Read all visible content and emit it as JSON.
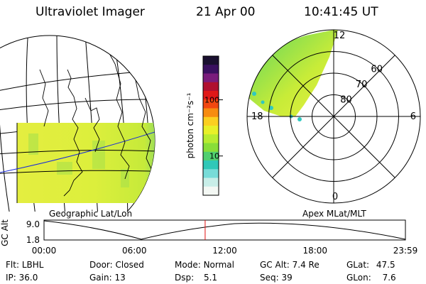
{
  "header": {
    "title": "Ultraviolet Imager",
    "date": "21 Apr 00",
    "time": "10:41:45 UT"
  },
  "colorbar": {
    "unit_label": "photon cm⁻²s⁻¹",
    "ticks": [
      {
        "value": 100,
        "label": "100"
      },
      {
        "value": 10,
        "label": "10"
      }
    ],
    "colors": [
      "#1a1030",
      "#3a1060",
      "#7a1c7c",
      "#b01030",
      "#e01818",
      "#f24810",
      "#f78c10",
      "#fbcf20",
      "#e8f028",
      "#b8ec30",
      "#88de38",
      "#50cf70",
      "#30c8b8",
      "#78dcd8",
      "#c8eee8",
      "#f4f8f4"
    ]
  },
  "geo_panel": {
    "label": "Geographic Lat/Lon"
  },
  "polar_panel": {
    "label": "Apex MLat/MLT",
    "ring_labels": [
      {
        "value": 80,
        "text": "80"
      },
      {
        "value": 70,
        "text": "70"
      },
      {
        "value": 60,
        "text": "60"
      }
    ],
    "mlt_labels": [
      {
        "mlt": 12,
        "text": "12"
      },
      {
        "mlt": 18,
        "text": "18"
      },
      {
        "mlt": 6,
        "text": "6"
      },
      {
        "mlt": 0,
        "text": "0"
      }
    ]
  },
  "altitude_plot": {
    "ylabel": "GC Alt",
    "yticks": [
      "9.0",
      "1.8"
    ],
    "xticks": [
      "00:00",
      "06:00",
      "12:00",
      "18:00",
      "23:59"
    ],
    "current_time_hours": 10.7
  },
  "info": {
    "filter": {
      "label": "Flt:",
      "value": "LBHL"
    },
    "ip": {
      "label": "IP:",
      "value": "36.0"
    },
    "door": {
      "label": "Door:",
      "value": "Closed"
    },
    "gain": {
      "label": "Gain:",
      "value": "13"
    },
    "mode": {
      "label": "Mode:",
      "value": "Normal"
    },
    "dsp": {
      "label": "Dsp:",
      "value": "5.1"
    },
    "gc_alt": {
      "label": "GC Alt:",
      "value": "7.4 Re"
    },
    "seq": {
      "label": "Seq:",
      "value": "39"
    },
    "glat": {
      "label": "GLat:",
      "value": "47.5"
    },
    "glon": {
      "label": "GLon:",
      "value": "7.6"
    }
  }
}
